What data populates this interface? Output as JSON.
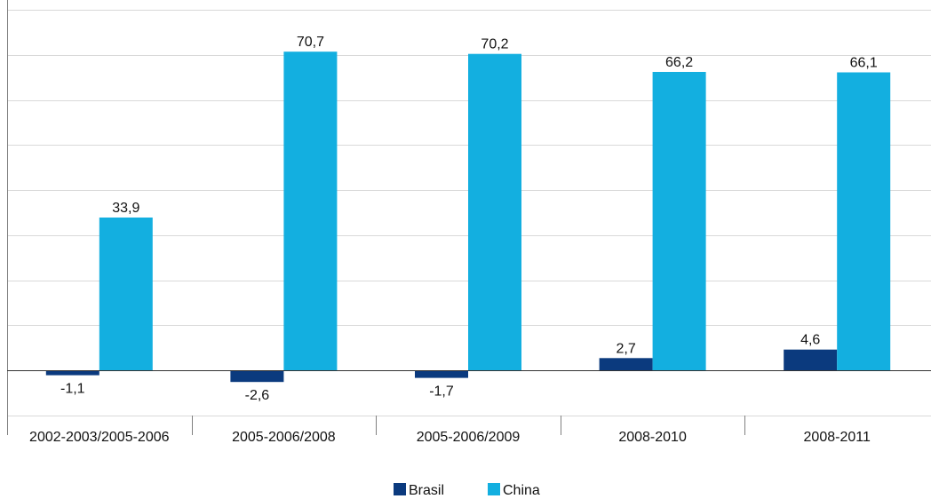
{
  "chart_data": {
    "type": "bar",
    "categories": [
      "2002-2003/2005-2006",
      "2005-2006/2008",
      "2005-2006/2009",
      "2008-2010",
      "2008-2011"
    ],
    "series": [
      {
        "name": "Brasil",
        "color": "#0b3a7e",
        "values": [
          -1.1,
          -2.6,
          -1.7,
          2.7,
          4.6
        ],
        "labels": [
          "-1,1",
          "-2,6",
          "-1,7",
          "2,7",
          "4,6"
        ]
      },
      {
        "name": "China",
        "color": "#13afe0",
        "values": [
          33.9,
          70.7,
          70.2,
          66.2,
          66.1
        ],
        "labels": [
          "33,9",
          "70,7",
          "70,2",
          "66,2",
          "66,1"
        ]
      }
    ],
    "ylim": [
      -10,
      80
    ],
    "ygrid_step": 10,
    "grid": true,
    "y_tick_labels_shown": false,
    "legend_position": "bottom-center"
  }
}
